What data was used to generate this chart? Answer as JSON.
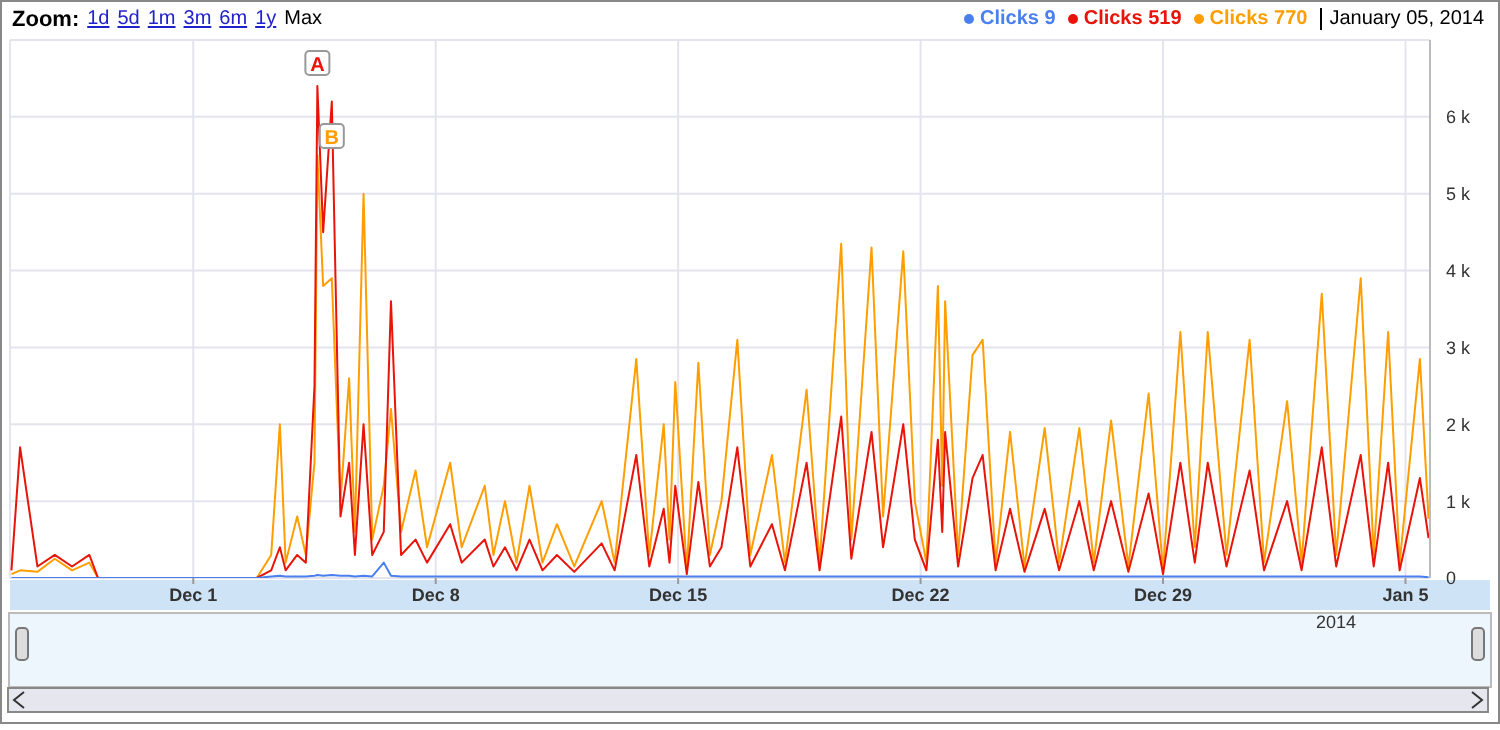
{
  "chart_data": {
    "type": "line",
    "x": [
      "2013-11-25T18:00",
      "2013-11-26T00:00",
      "2013-11-26T12:00",
      "2013-11-27T00:00",
      "2013-11-27T12:00",
      "2013-11-28T00:00",
      "2013-11-28T06:00",
      "2013-12-02T20:00",
      "2013-12-03T06:00",
      "2013-12-03T12:00",
      "2013-12-03T16:00",
      "2013-12-04T00:00",
      "2013-12-04T06:00",
      "2013-12-04T12:00",
      "2013-12-04T14:00",
      "2013-12-04T18:00",
      "2013-12-05T00:00",
      "2013-12-05T06:00",
      "2013-12-05T12:00",
      "2013-12-05T16:00",
      "2013-12-05T22:00",
      "2013-12-06T04:00",
      "2013-12-06T12:00",
      "2013-12-06T17:00",
      "2013-12-07T00:00",
      "2013-12-07T10:00",
      "2013-12-07T18:00",
      "2013-12-08T10:00",
      "2013-12-08T18:00",
      "2013-12-09T10:00",
      "2013-12-09T16:00",
      "2013-12-10T00:00",
      "2013-12-10T08:00",
      "2013-12-10T17:00",
      "2013-12-11T02:00",
      "2013-12-11T12:00",
      "2013-12-12T00:00",
      "2013-12-12T19:00",
      "2013-12-13T04:00",
      "2013-12-13T19:00",
      "2013-12-14T04:00",
      "2013-12-14T14:00",
      "2013-12-14T18:00",
      "2013-12-14T22:00",
      "2013-12-15T06:00",
      "2013-12-15T14:00",
      "2013-12-15T22:00",
      "2013-12-16T06:00",
      "2013-12-16T17:00",
      "2013-12-17T02:00",
      "2013-12-17T17:00",
      "2013-12-18T02:00",
      "2013-12-18T17:00",
      "2013-12-19T02:00",
      "2013-12-19T17:00",
      "2013-12-20T00:00",
      "2013-12-20T14:00",
      "2013-12-20T22:00",
      "2013-12-21T12:00",
      "2013-12-21T20:00",
      "2013-12-22T04:00",
      "2013-12-22T12:00",
      "2013-12-22T15:00",
      "2013-12-22T17:00",
      "2013-12-23T02:00",
      "2013-12-23T12:00",
      "2013-12-23T19:00",
      "2013-12-24T04:00",
      "2013-12-24T14:00",
      "2013-12-25T00:00",
      "2013-12-25T14:00",
      "2013-12-26T00:00",
      "2013-12-26T14:00",
      "2013-12-27T00:00",
      "2013-12-27T12:00",
      "2013-12-28T00:00",
      "2013-12-28T14:00",
      "2013-12-29T00:00",
      "2013-12-29T12:00",
      "2013-12-29T22:00",
      "2013-12-30T07:00",
      "2013-12-30T20:00",
      "2013-12-31T12:00",
      "2013-12-31T22:00",
      "2014-01-01T14:00",
      "2014-01-02T00:00",
      "2014-01-02T14:00",
      "2014-01-03T00:00",
      "2014-01-03T17:00",
      "2014-01-04T02:00",
      "2014-01-04T12:00",
      "2014-01-04T20:00",
      "2014-01-05T10:00",
      "2014-01-05T16:00"
    ],
    "series": [
      {
        "name": "Clicks 9",
        "color": "#4a7ff0",
        "values": [
          0,
          0,
          0,
          0,
          0,
          0,
          0,
          0,
          20,
          30,
          20,
          20,
          20,
          30,
          40,
          30,
          40,
          30,
          30,
          20,
          30,
          20,
          200,
          30,
          20,
          20,
          20,
          20,
          20,
          20,
          20,
          20,
          20,
          20,
          20,
          20,
          20,
          20,
          20,
          20,
          20,
          20,
          20,
          20,
          20,
          20,
          20,
          20,
          20,
          20,
          20,
          20,
          20,
          20,
          20,
          20,
          20,
          20,
          20,
          20,
          20,
          20,
          20,
          20,
          20,
          20,
          20,
          20,
          20,
          20,
          20,
          20,
          20,
          20,
          20,
          20,
          20,
          20,
          20,
          20,
          20,
          20,
          20,
          20,
          20,
          20,
          20,
          20,
          20,
          20,
          20,
          20,
          20,
          9
        ]
      },
      {
        "name": "Clicks 519",
        "color": "#e8140a",
        "values": [
          100,
          1700,
          150,
          300,
          150,
          300,
          0,
          0,
          100,
          400,
          100,
          300,
          200,
          2500,
          6400,
          4500,
          6200,
          800,
          1500,
          300,
          2000,
          300,
          600,
          3600,
          300,
          500,
          200,
          700,
          200,
          500,
          150,
          400,
          100,
          500,
          100,
          300,
          80,
          450,
          100,
          1600,
          150,
          900,
          200,
          1200,
          50,
          1250,
          150,
          400,
          1700,
          150,
          700,
          100,
          1500,
          100,
          2100,
          250,
          1900,
          400,
          2000,
          500,
          100,
          1800,
          600,
          1900,
          150,
          1300,
          1600,
          100,
          900,
          80,
          900,
          100,
          1000,
          100,
          1000,
          80,
          1100,
          50,
          1500,
          200,
          1500,
          150,
          1400,
          100,
          1000,
          100,
          1700,
          150,
          1600,
          150,
          1500,
          100,
          1300,
          519
        ]
      },
      {
        "name": "Clicks 770",
        "color": "#ff9e00",
        "values": [
          50,
          100,
          80,
          250,
          100,
          200,
          0,
          0,
          300,
          2000,
          200,
          800,
          300,
          1500,
          5500,
          3800,
          3900,
          1000,
          2600,
          600,
          5000,
          500,
          1200,
          2200,
          600,
          1400,
          400,
          1500,
          400,
          1200,
          300,
          1000,
          200,
          1200,
          200,
          700,
          150,
          1000,
          200,
          2850,
          300,
          2000,
          500,
          2550,
          100,
          2800,
          300,
          1000,
          3100,
          300,
          1600,
          200,
          2450,
          200,
          4350,
          500,
          4300,
          800,
          4250,
          1000,
          200,
          3800,
          1200,
          3600,
          300,
          2900,
          3100,
          200,
          1900,
          150,
          1950,
          200,
          1950,
          200,
          2050,
          150,
          2400,
          100,
          3200,
          400,
          3200,
          300,
          3100,
          200,
          2300,
          200,
          3700,
          300,
          3900,
          300,
          3200,
          200,
          2850,
          770
        ]
      }
    ],
    "xlim": [
      "2013-11-25T17:00",
      "2014-01-05T17:00"
    ],
    "xticks": [
      {
        "value": "2013-12-01",
        "label": "Dec 1"
      },
      {
        "value": "2013-12-08",
        "label": "Dec 8"
      },
      {
        "value": "2013-12-15",
        "label": "Dec 15"
      },
      {
        "value": "2013-12-22",
        "label": "Dec 22"
      },
      {
        "value": "2013-12-29",
        "label": "Dec 29"
      },
      {
        "value": "2014-01-05",
        "label": "Jan 5"
      }
    ],
    "ylim": [
      0,
      7000
    ],
    "yticks": [
      0,
      {
        "value": 1000,
        "label": "1 k"
      },
      {
        "value": 2000,
        "label": "2 k"
      },
      {
        "value": 3000,
        "label": "3 k"
      },
      {
        "value": 4000,
        "label": "4 k"
      },
      {
        "value": 5000,
        "label": "5 k"
      },
      {
        "value": 6000,
        "label": "6 k"
      }
    ],
    "grid": true,
    "legend": "top right",
    "marker": "none",
    "line_style": "solid",
    "annotations": [
      "Zoom:",
      "1d",
      "5d",
      "1m",
      "3m",
      "6m",
      "1y",
      "Max",
      "January 05, 2014",
      {
        "text": "A",
        "x": "2013-12-04T14:00",
        "y": 6700
      },
      {
        "text": "B",
        "x": "2013-12-05T00:00",
        "y": 5750
      },
      "2014"
    ]
  }
}
